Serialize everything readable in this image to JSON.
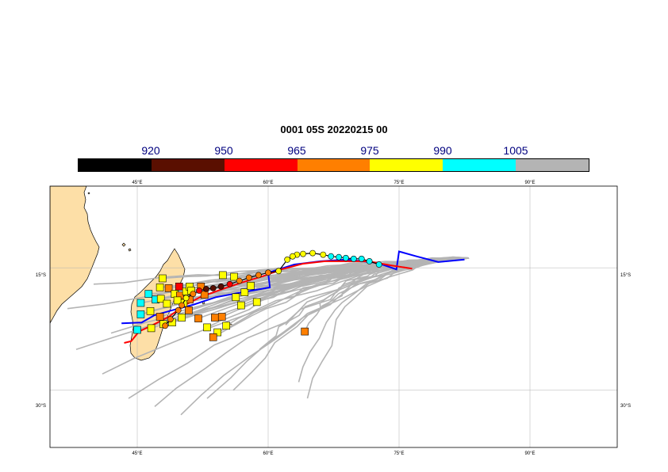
{
  "title": "0001 05S 20220215 00",
  "legend": {
    "labels": [
      "920",
      "950",
      "965",
      "975",
      "990",
      "1005"
    ],
    "colors": [
      "#000000",
      "#5a0f00",
      "#ff0000",
      "#ff7f00",
      "#ffff00",
      "#00ffff",
      "#b4b4b4"
    ]
  },
  "map": {
    "lon_range": [
      35,
      100
    ],
    "lat_range": [
      -37,
      -5
    ],
    "x_ticks": [
      "45°E",
      "60°E",
      "75°E",
      "90°E"
    ],
    "y_ticks": [
      "15°S",
      "30°S"
    ],
    "grid": true,
    "land_color": "#fddfa7",
    "ensemble_track_color": "#b4b4b4",
    "deterministic_track_color": "#0000ff",
    "ensemble_mean_color": "#ff0000"
  },
  "observed_track": [
    {
      "lon": 72.7,
      "lat": -14.6,
      "c": "#00ffff"
    },
    {
      "lon": 71.6,
      "lat": -14.2,
      "c": "#00ffff"
    },
    {
      "lon": 70.7,
      "lat": -13.9,
      "c": "#00ffff"
    },
    {
      "lon": 69.8,
      "lat": -13.9,
      "c": "#00ffff"
    },
    {
      "lon": 68.9,
      "lat": -13.8,
      "c": "#00ffff"
    },
    {
      "lon": 68.1,
      "lat": -13.7,
      "c": "#00ffff"
    },
    {
      "lon": 67.2,
      "lat": -13.6,
      "c": "#00ffff"
    },
    {
      "lon": 66.3,
      "lat": -13.4,
      "c": "#ffff00"
    },
    {
      "lon": 65.1,
      "lat": -13.2,
      "c": "#ffff00"
    },
    {
      "lon": 64.0,
      "lat": -13.3,
      "c": "#ffff00"
    },
    {
      "lon": 63.3,
      "lat": -13.4,
      "c": "#ffff00"
    },
    {
      "lon": 62.8,
      "lat": -13.6,
      "c": "#ffff00"
    },
    {
      "lon": 62.2,
      "lat": -14.0,
      "c": "#ffff00"
    },
    {
      "lon": 61.2,
      "lat": -15.4,
      "c": "#ffff00"
    },
    {
      "lon": 60.0,
      "lat": -15.6,
      "c": "#ff7f00"
    },
    {
      "lon": 58.9,
      "lat": -15.9,
      "c": "#ff7f00"
    },
    {
      "lon": 57.8,
      "lat": -16.2,
      "c": "#ff7f00"
    },
    {
      "lon": 56.7,
      "lat": -16.6,
      "c": "#ff7f00"
    },
    {
      "lon": 55.6,
      "lat": -17.0,
      "c": "#ff0000"
    },
    {
      "lon": 54.6,
      "lat": -17.3,
      "c": "#5a0f00"
    },
    {
      "lon": 53.7,
      "lat": -17.5,
      "c": "#5a0f00"
    },
    {
      "lon": 52.9,
      "lat": -17.6,
      "c": "#5a0f00"
    },
    {
      "lon": 52.1,
      "lat": -17.8,
      "c": "#ff0000"
    },
    {
      "lon": 51.4,
      "lat": -18.2,
      "c": "#ff7f00"
    },
    {
      "lon": 50.6,
      "lat": -18.7,
      "c": "#ffff00"
    },
    {
      "lon": 50.1,
      "lat": -19.6,
      "c": "#ff7f00"
    },
    {
      "lon": 49.7,
      "lat": -20.2,
      "c": "#ff7f00"
    },
    {
      "lon": 48.8,
      "lat": -21.3,
      "c": "#ff7f00"
    },
    {
      "lon": 48.2,
      "lat": -22.1,
      "c": "#ff7f00"
    }
  ],
  "ensemble_endpoints": [
    {
      "lon": 49.8,
      "lat": -17.3,
      "c": "#ff0000"
    },
    {
      "lon": 47.9,
      "lat": -16.3,
      "c": "#ffff00"
    },
    {
      "lon": 48.6,
      "lat": -17.5,
      "c": "#ff7f00"
    },
    {
      "lon": 47.6,
      "lat": -17.4,
      "c": "#ffff00"
    },
    {
      "lon": 46.3,
      "lat": -18.2,
      "c": "#00ffff"
    },
    {
      "lon": 47.1,
      "lat": -18.9,
      "c": "#00ffff"
    },
    {
      "lon": 47.7,
      "lat": -18.8,
      "c": "#ffff00"
    },
    {
      "lon": 48.4,
      "lat": -19.4,
      "c": "#ffff00"
    },
    {
      "lon": 49.3,
      "lat": -18.2,
      "c": "#ffff00"
    },
    {
      "lon": 49.9,
      "lat": -18.4,
      "c": "#ff7f00"
    },
    {
      "lon": 50.6,
      "lat": -17.9,
      "c": "#ffff00"
    },
    {
      "lon": 51.0,
      "lat": -17.3,
      "c": "#ffff00"
    },
    {
      "lon": 51.2,
      "lat": -17.8,
      "c": "#ffff00"
    },
    {
      "lon": 52.3,
      "lat": -17.3,
      "c": "#ff7f00"
    },
    {
      "lon": 52.7,
      "lat": -18.3,
      "c": "#ff7f00"
    },
    {
      "lon": 51.0,
      "lat": -18.9,
      "c": "#ff7f00"
    },
    {
      "lon": 50.3,
      "lat": -19.3,
      "c": "#ffff00"
    },
    {
      "lon": 49.6,
      "lat": -19.0,
      "c": "#ffff00"
    },
    {
      "lon": 45.4,
      "lat": -19.3,
      "c": "#00ffff"
    },
    {
      "lon": 45.4,
      "lat": -20.7,
      "c": "#00ffff"
    },
    {
      "lon": 46.5,
      "lat": -20.3,
      "c": "#ffff00"
    },
    {
      "lon": 47.6,
      "lat": -21.0,
      "c": "#ff7f00"
    },
    {
      "lon": 49.0,
      "lat": -21.7,
      "c": "#ffff00"
    },
    {
      "lon": 50.1,
      "lat": -21.1,
      "c": "#ffff00"
    },
    {
      "lon": 50.9,
      "lat": -20.2,
      "c": "#ff7f00"
    },
    {
      "lon": 52.0,
      "lat": -21.2,
      "c": "#ff7f00"
    },
    {
      "lon": 53.0,
      "lat": -22.3,
      "c": "#ffff00"
    },
    {
      "lon": 53.9,
      "lat": -21.1,
      "c": "#ff7f00"
    },
    {
      "lon": 54.7,
      "lat": -21.0,
      "c": "#ff7f00"
    },
    {
      "lon": 55.2,
      "lat": -22.1,
      "c": "#ffff00"
    },
    {
      "lon": 54.2,
      "lat": -22.9,
      "c": "#ffff00"
    },
    {
      "lon": 53.7,
      "lat": -23.5,
      "c": "#ff7f00"
    },
    {
      "lon": 54.8,
      "lat": -15.9,
      "c": "#ffff00"
    },
    {
      "lon": 56.1,
      "lat": -16.1,
      "c": "#ffff00"
    },
    {
      "lon": 56.3,
      "lat": -18.6,
      "c": "#ffff00"
    },
    {
      "lon": 57.3,
      "lat": -18.0,
      "c": "#ffff00"
    },
    {
      "lon": 58.0,
      "lat": -17.2,
      "c": "#ffff00"
    },
    {
      "lon": 56.9,
      "lat": -19.6,
      "c": "#ffff00"
    },
    {
      "lon": 58.7,
      "lat": -19.2,
      "c": "#ffff00"
    },
    {
      "lon": 64.2,
      "lat": -22.8,
      "c": "#ff7f00"
    },
    {
      "lon": 45.0,
      "lat": -22.6,
      "c": "#00ffff"
    },
    {
      "lon": 48.0,
      "lat": -21.9,
      "c": "#ffff00"
    },
    {
      "lon": 46.6,
      "lat": -22.4,
      "c": "#ffff00"
    }
  ]
}
